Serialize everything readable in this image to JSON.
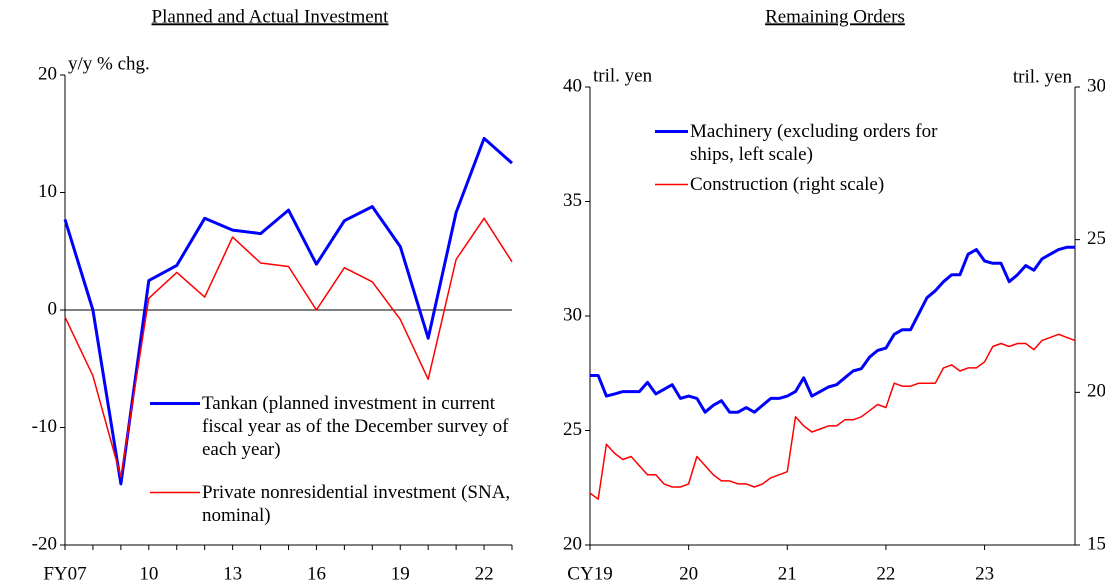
{
  "chart_data": [
    {
      "type": "line",
      "title": "Planned and Actual Investment",
      "y_label": "y/y % chg.",
      "categories": [
        "FY07",
        null,
        null,
        "10",
        null,
        null,
        "13",
        null,
        null,
        "16",
        null,
        null,
        "19",
        null,
        null,
        "22",
        null
      ],
      "series": [
        {
          "name": "Tankan (planned investment in current fiscal year as of the December survey of each year)",
          "color": "#0000ff",
          "values": [
            7.7,
            0,
            -14.8,
            2.5,
            3.8,
            7.8,
            6.8,
            6.5,
            8.5,
            3.9,
            7.6,
            8.8,
            5.4,
            -2.4,
            8.3,
            14.6,
            12.5
          ]
        },
        {
          "name": "Private nonresidential investment (SNA, nominal)",
          "color": "#ff0000",
          "values": [
            -0.6,
            -5.6,
            -14.2,
            1.0,
            3.2,
            1.1,
            6.2,
            4.0,
            3.7,
            0,
            3.6,
            2.4,
            -0.8,
            -5.9,
            4.3,
            7.8,
            4.1
          ]
        }
      ],
      "ylim": [
        -20,
        20
      ],
      "yticks": [
        -20,
        -10,
        0,
        10,
        20
      ]
    },
    {
      "type": "line",
      "title": "Remaining Orders",
      "y_label": "tril. yen",
      "y2_label": "tril. yen",
      "categories": [
        "CY19",
        null,
        null,
        null,
        null,
        null,
        null,
        null,
        null,
        null,
        null,
        null,
        "20",
        null,
        null,
        null,
        null,
        null,
        null,
        null,
        null,
        null,
        null,
        null,
        "21",
        null,
        null,
        null,
        null,
        null,
        null,
        null,
        null,
        null,
        null,
        null,
        "22",
        null,
        null,
        null,
        null,
        null,
        null,
        null,
        null,
        null,
        null,
        null,
        "23",
        null,
        null,
        null,
        null,
        null,
        null,
        null,
        null,
        null,
        null,
        null
      ],
      "series": [
        {
          "name": "Machinery (excluding orders for ships, left scale)",
          "color": "#0000ff",
          "axis": "y",
          "values": [
            27.4,
            27.4,
            26.5,
            26.6,
            26.7,
            26.7,
            26.7,
            27.1,
            26.6,
            26.8,
            27.0,
            26.4,
            26.5,
            26.4,
            25.8,
            26.1,
            26.3,
            25.8,
            25.8,
            26.0,
            25.8,
            26.1,
            26.4,
            26.4,
            26.5,
            26.7,
            27.3,
            26.5,
            26.7,
            26.9,
            27.0,
            27.3,
            27.6,
            27.7,
            28.2,
            28.5,
            28.6,
            29.2,
            29.4,
            29.4,
            30.1,
            30.8,
            31.1,
            31.5,
            31.8,
            31.8,
            32.7,
            32.9,
            32.4,
            32.3,
            32.3,
            31.5,
            31.8,
            32.2,
            32.0,
            32.5,
            32.7,
            32.9,
            33.0,
            33.0
          ]
        },
        {
          "name": "Construction (right scale)",
          "color": "#ff0000",
          "axis": "y2",
          "values": [
            16.7,
            16.5,
            18.3,
            18.0,
            17.8,
            17.9,
            17.6,
            17.3,
            17.3,
            17.0,
            16.9,
            16.9,
            17.0,
            17.9,
            17.6,
            17.3,
            17.1,
            17.1,
            17.0,
            17.0,
            16.9,
            17.0,
            17.2,
            17.3,
            17.4,
            19.2,
            18.9,
            18.7,
            18.8,
            18.9,
            18.9,
            19.1,
            19.1,
            19.2,
            19.4,
            19.6,
            19.5,
            20.3,
            20.2,
            20.2,
            20.3,
            20.3,
            20.3,
            20.8,
            20.9,
            20.7,
            20.8,
            20.8,
            21.0,
            21.5,
            21.6,
            21.5,
            21.6,
            21.6,
            21.4,
            21.7,
            21.8,
            21.9,
            21.8,
            21.7
          ]
        }
      ],
      "ylim": [
        20,
        40
      ],
      "yticks": [
        20,
        25,
        30,
        35,
        40
      ],
      "y2lim": [
        15,
        30
      ],
      "y2ticks": [
        15,
        20,
        25,
        30
      ]
    }
  ]
}
